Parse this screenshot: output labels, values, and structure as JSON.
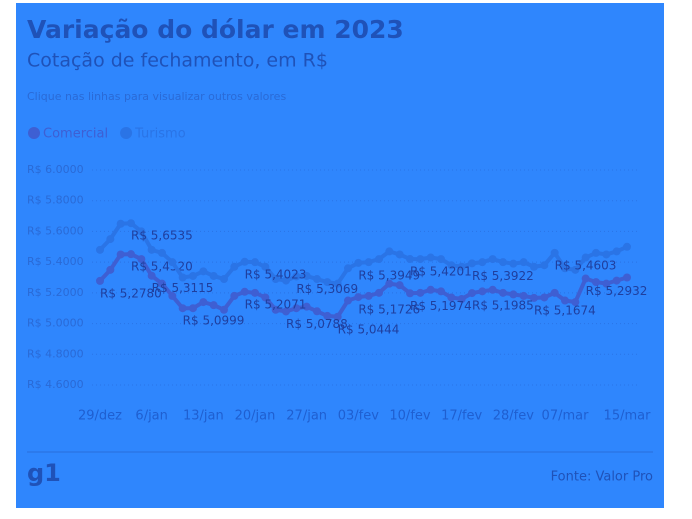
{
  "chart_data": {
    "type": "line",
    "title": "Variação do dólar em 2023",
    "subtitle": "Cotação de fechamento, em R$",
    "note": "Clique nas linhas para visualizar outros valores",
    "source": "Fonte: Valor Pro",
    "logo": "g1",
    "categories": [
      "29/dez",
      null,
      null,
      null,
      null,
      "6/jan",
      null,
      null,
      null,
      null,
      "13/jan",
      null,
      null,
      null,
      null,
      "20/jan",
      null,
      null,
      null,
      null,
      "27/jan",
      null,
      null,
      null,
      null,
      "03/fev",
      null,
      null,
      null,
      null,
      "10/fev",
      null,
      null,
      null,
      null,
      "17/fev",
      null,
      null,
      null,
      null,
      "28/fev",
      null,
      null,
      null,
      null,
      "07/mar",
      null,
      null,
      null,
      null,
      null,
      "15/mar"
    ],
    "series": [
      {
        "name": "Comercial",
        "color": "#3e5fd3",
        "values": [
          5.278,
          5.35,
          5.45,
          5.452,
          5.42,
          5.3115,
          5.26,
          5.18,
          5.0999,
          5.1,
          5.14,
          5.12,
          5.09,
          5.18,
          5.2071,
          5.2,
          5.17,
          5.09,
          5.0788,
          5.1,
          5.11,
          5.08,
          5.05,
          5.0444,
          5.15,
          5.1726,
          5.18,
          5.2,
          5.26,
          5.25,
          5.1974,
          5.2,
          5.22,
          5.21,
          5.17,
          5.16,
          5.1985,
          5.21,
          5.22,
          5.2,
          5.19,
          5.18,
          5.1674,
          5.17,
          5.2,
          5.15,
          5.14,
          5.2932,
          5.27,
          5.26,
          5.28,
          5.3
        ],
        "value_labels": [
          "R$ 5,2780",
          null,
          null,
          "R$ 5,4520",
          null,
          "R$ 5,3115",
          null,
          null,
          "R$ 5,0999",
          null,
          null,
          null,
          null,
          null,
          "R$ 5,2071",
          null,
          null,
          null,
          "R$ 5,0788",
          null,
          null,
          null,
          null,
          "R$ 5,0444",
          null,
          "R$ 5,1726",
          null,
          null,
          null,
          null,
          "R$ 5,1974",
          null,
          null,
          null,
          null,
          null,
          "R$ 5,1985",
          null,
          null,
          null,
          null,
          null,
          "R$ 5,1674",
          null,
          null,
          null,
          null,
          "R$ 5,2932",
          null,
          null,
          null,
          null
        ]
      },
      {
        "name": "Turismo",
        "color": "#2a74e6",
        "values": [
          5.48,
          5.55,
          5.65,
          5.6535,
          5.6,
          5.48,
          5.46,
          5.4,
          5.3,
          5.31,
          5.34,
          5.31,
          5.29,
          5.37,
          5.4023,
          5.4,
          5.37,
          5.29,
          5.28,
          5.3069,
          5.31,
          5.29,
          5.27,
          5.26,
          5.36,
          5.3949,
          5.4,
          5.42,
          5.47,
          5.45,
          5.4201,
          5.42,
          5.43,
          5.42,
          5.38,
          5.37,
          5.3922,
          5.4,
          5.42,
          5.4,
          5.39,
          5.4,
          5.37,
          5.38,
          5.4603,
          5.36,
          5.35,
          5.43,
          5.46,
          5.45,
          5.47,
          5.5
        ],
        "value_labels": [
          null,
          null,
          null,
          "R$ 5,6535",
          null,
          null,
          null,
          null,
          null,
          null,
          null,
          null,
          null,
          null,
          "R$ 5,4023",
          null,
          null,
          null,
          null,
          "R$ 5,3069",
          null,
          null,
          null,
          null,
          null,
          "R$ 5,3949",
          null,
          null,
          null,
          null,
          "R$ 5,4201",
          null,
          null,
          null,
          null,
          null,
          "R$ 5,3922",
          null,
          null,
          null,
          null,
          null,
          null,
          null,
          "R$ 5,4603",
          null,
          null,
          null,
          null,
          null,
          null,
          null
        ]
      }
    ],
    "ylim": [
      4.5,
      6.0
    ],
    "yticks": [
      {
        "value": 4.6,
        "label": "R$ 4.6000"
      },
      {
        "value": 4.8,
        "label": "R$ 4.8000"
      },
      {
        "value": 5.0,
        "label": "R$ 5.0000"
      },
      {
        "value": 5.2,
        "label": "R$ 5.2000"
      },
      {
        "value": 5.4,
        "label": "R$ 5.4000"
      },
      {
        "value": 5.6,
        "label": "R$ 5.6000"
      },
      {
        "value": 5.8,
        "label": "R$ 5.8000"
      },
      {
        "value": 6.0,
        "label": "R$ 6.0000"
      }
    ],
    "grid": true,
    "legend": "top-left"
  }
}
